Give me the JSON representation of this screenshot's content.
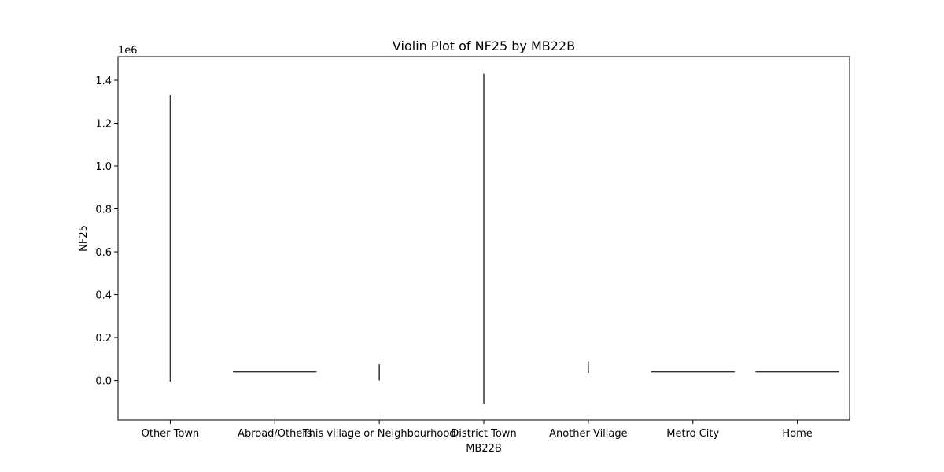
{
  "chart_data": {
    "type": "violin",
    "title": "Violin Plot of NF25 by MB22B",
    "xlabel": "MB22B",
    "ylabel": "NF25",
    "y_offset_label": "1e6",
    "ylim": [
      -0.185,
      1.51
    ],
    "yticks": [
      "0.0",
      "0.2",
      "0.4",
      "0.6",
      "0.8",
      "1.0",
      "1.2",
      "1.4"
    ],
    "categories": [
      "Other Town",
      "Abroad/Others",
      "This village or Neighbourhood",
      "District Town",
      "Another Village",
      "Metro City",
      "Home"
    ],
    "violins": [
      {
        "category": "Other Town",
        "min": -0.005,
        "max": 1.33,
        "shape": "vertical"
      },
      {
        "category": "Abroad/Others",
        "min": 0.04,
        "max": 0.04,
        "shape": "horizontal"
      },
      {
        "category": "This village or Neighbourhood",
        "min": 0.0,
        "max": 0.075,
        "shape": "vertical"
      },
      {
        "category": "District Town",
        "min": -0.11,
        "max": 1.43,
        "shape": "vertical"
      },
      {
        "category": "Another Village",
        "min": 0.035,
        "max": 0.088,
        "shape": "vertical"
      },
      {
        "category": "Metro City",
        "min": 0.04,
        "max": 0.04,
        "shape": "horizontal"
      },
      {
        "category": "Home",
        "min": 0.04,
        "max": 0.04,
        "shape": "horizontal"
      }
    ],
    "grid": false,
    "line_color": "#333333"
  }
}
